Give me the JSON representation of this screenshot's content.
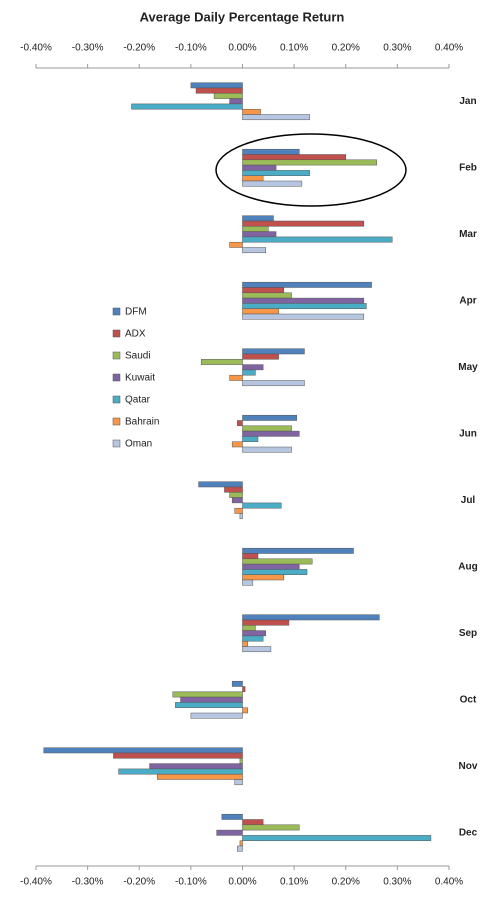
{
  "chart_data": {
    "type": "hbar",
    "title": "Average Daily Percentage Return",
    "categories": [
      "Jan",
      "Feb",
      "Mar",
      "Apr",
      "May",
      "Jun",
      "Jul",
      "Aug",
      "Sep",
      "Oct",
      "Nov",
      "Dec"
    ],
    "series": [
      {
        "name": "DFM",
        "color": "#4f81bd",
        "values": [
          -0.1,
          0.11,
          0.06,
          0.25,
          0.12,
          0.105,
          -0.085,
          0.215,
          0.265,
          -0.02,
          -0.385,
          -0.04
        ]
      },
      {
        "name": "ADX",
        "color": "#c0504d",
        "values": [
          -0.09,
          0.2,
          0.235,
          0.08,
          0.07,
          -0.01,
          -0.035,
          0.03,
          0.09,
          0.005,
          -0.25,
          0.04
        ]
      },
      {
        "name": "Saudi",
        "color": "#9bbb59",
        "values": [
          -0.055,
          0.26,
          0.05,
          0.095,
          -0.08,
          0.095,
          -0.025,
          0.135,
          0.025,
          -0.135,
          -0.005,
          0.11
        ]
      },
      {
        "name": "Kuwait",
        "color": "#8064a2",
        "values": [
          -0.025,
          0.065,
          0.065,
          0.235,
          0.04,
          0.11,
          -0.02,
          0.11,
          0.045,
          -0.12,
          -0.18,
          -0.05
        ]
      },
      {
        "name": "Qatar",
        "color": "#4bacc6",
        "values": [
          -0.215,
          0.13,
          0.29,
          0.24,
          0.025,
          0.03,
          0.075,
          0.125,
          0.04,
          -0.13,
          -0.24,
          0.365
        ]
      },
      {
        "name": "Bahrain",
        "color": "#f79646",
        "values": [
          0.035,
          0.04,
          -0.025,
          0.07,
          -0.025,
          -0.02,
          -0.015,
          0.08,
          0.01,
          0.01,
          -0.165,
          -0.005
        ]
      },
      {
        "name": "Oman",
        "color": "#b7c6e0",
        "values": [
          0.13,
          0.115,
          0.045,
          0.235,
          0.12,
          0.095,
          -0.005,
          0.02,
          0.055,
          -0.1,
          -0.015,
          -0.01
        ]
      }
    ],
    "xlim": [
      -0.4,
      0.4
    ],
    "xticks": [
      {
        "value": -0.4,
        "label": "-0.40%"
      },
      {
        "value": -0.3,
        "label": "-0.30%"
      },
      {
        "value": -0.2,
        "label": "-0.20%"
      },
      {
        "value": -0.1,
        "label": "-0.10%"
      },
      {
        "value": 0,
        "label": "0.00%"
      },
      {
        "value": 0.1,
        "label": "0.10%"
      },
      {
        "value": 0.2,
        "label": "0.20%"
      },
      {
        "value": 0.3,
        "label": "0.30%"
      },
      {
        "value": 0.4,
        "label": "0.40%"
      }
    ],
    "legend": "left"
  }
}
